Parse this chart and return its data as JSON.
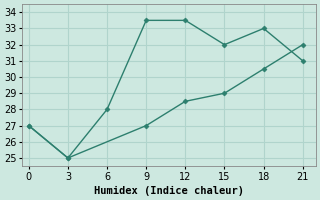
{
  "line1_x": [
    0,
    3,
    6,
    9,
    12,
    15,
    18,
    21
  ],
  "line1_y": [
    27,
    25,
    28,
    33.5,
    33.5,
    32,
    33,
    31
  ],
  "line2_x": [
    0,
    3,
    9,
    12,
    15,
    18,
    21
  ],
  "line2_y": [
    27,
    25,
    27,
    28.5,
    29,
    30.5,
    32
  ],
  "line_color": "#2d7f6e",
  "bg_color": "#cde8e0",
  "grid_color": "#b0d4cc",
  "xlabel": "Humidex (Indice chaleur)",
  "xticks": [
    0,
    3,
    6,
    9,
    12,
    15,
    18,
    21
  ],
  "yticks": [
    25,
    26,
    27,
    28,
    29,
    30,
    31,
    32,
    33,
    34
  ],
  "xlim": [
    -0.5,
    22
  ],
  "ylim": [
    24.5,
    34.5
  ],
  "xlabel_fontsize": 7.5,
  "tick_fontsize": 7
}
